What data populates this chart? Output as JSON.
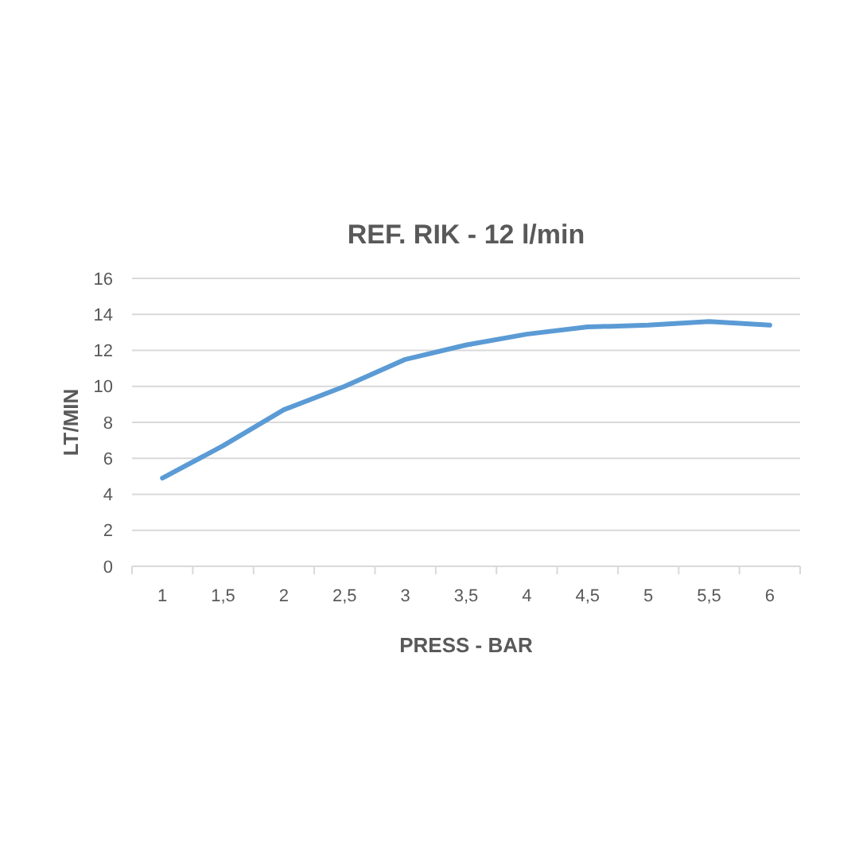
{
  "chart_data": {
    "type": "line",
    "title": "REF. RIK  - 12 l/min",
    "xlabel": "PRESS  -  BAR",
    "ylabel": "LT/MIN",
    "categories": [
      "1",
      "1,5",
      "2",
      "2,5",
      "3",
      "3,5",
      "4",
      "4,5",
      "5",
      "5,5",
      "6"
    ],
    "series": [
      {
        "color": "#5b9bd5",
        "values": [
          4.9,
          6.7,
          8.7,
          10,
          11.5,
          12.3,
          12.9,
          13.3,
          13.4,
          13.6,
          13.4
        ]
      }
    ],
    "ylim": [
      0,
      16
    ],
    "yticks": [
      0,
      2,
      4,
      6,
      8,
      10,
      12,
      14,
      16
    ],
    "grid": "y",
    "marker": "none",
    "line_style": "solid"
  }
}
